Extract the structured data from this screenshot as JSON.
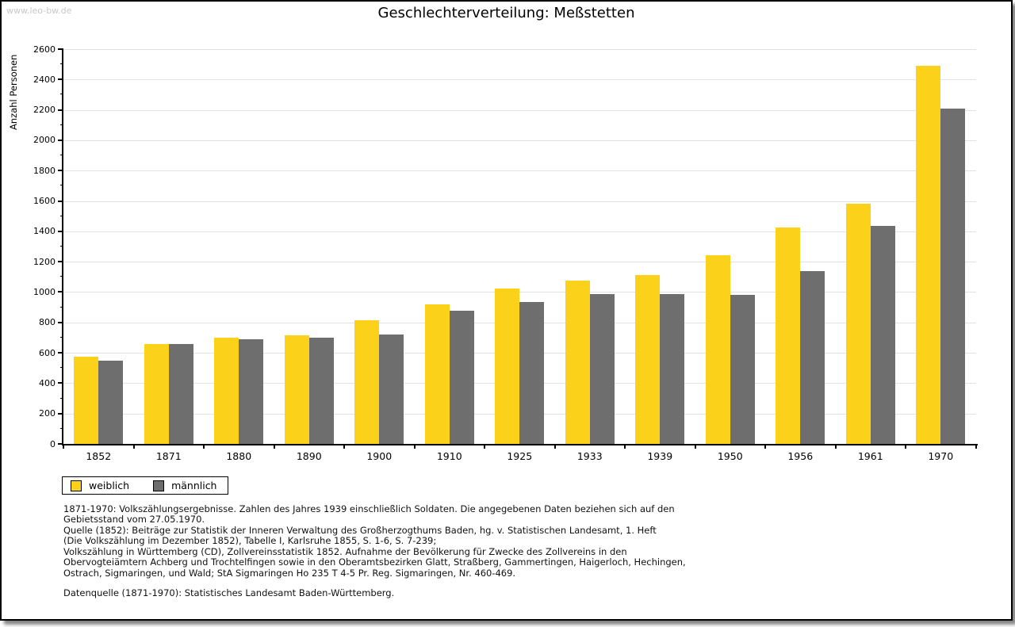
{
  "watermark": "www.leo-bw.de",
  "title": "Geschlechterverteilung: Meßstetten",
  "chart_data": {
    "type": "bar",
    "title": "Geschlechterverteilung: Meßstetten",
    "ylabel": "Anzahl Personen",
    "xlabel": "",
    "ylim": [
      0,
      2600
    ],
    "ytick_step": 200,
    "yticks": [
      0,
      200,
      400,
      600,
      800,
      1000,
      1200,
      1400,
      1600,
      1800,
      2000,
      2200,
      2400,
      2600
    ],
    "grid": "horizontal",
    "legend_position": "bottom-left",
    "categories": [
      "1852",
      "1871",
      "1880",
      "1890",
      "1900",
      "1910",
      "1925",
      "1933",
      "1939",
      "1950",
      "1956",
      "1961",
      "1970"
    ],
    "series": [
      {
        "name": "weiblich",
        "color": "#fcd11a",
        "values": [
          575,
          660,
          700,
          715,
          815,
          920,
          1025,
          1075,
          1110,
          1240,
          1425,
          1580,
          2490
        ]
      },
      {
        "name": "männlich",
        "color": "#6e6e6e",
        "values": [
          550,
          660,
          690,
          700,
          720,
          875,
          935,
          985,
          985,
          980,
          1140,
          1435,
          2210
        ]
      }
    ]
  },
  "legend": {
    "items": [
      {
        "label": "weiblich",
        "color": "#fcd11a"
      },
      {
        "label": "männlich",
        "color": "#6e6e6e"
      }
    ]
  },
  "notes": {
    "lines": [
      "1871-1970: Volkszählungsergebnisse. Zahlen des Jahres 1939 einschließlich Soldaten. Die angegebenen Daten beziehen sich auf den",
      "Gebietsstand vom 27.05.1970.",
      "Quelle (1852): Beiträge zur Statistik der Inneren Verwaltung des Großherzogthums Baden, hg. v. Statistischen Landesamt, 1. Heft",
      "(Die Volkszählung im Dezember 1852), Tabelle I, Karlsruhe 1855, S. 1-6, S. 7-239;",
      "Volkszählung in Württemberg (CD), Zollvereinsstatistik 1852. Aufnahme der Bevölkerung für Zwecke des Zollvereins in den",
      "Obervogteiämtern Achberg und Trochtelfingen sowie in den Oberamtsbezirken Glatt, Straßberg, Gammertingen, Haigerloch, Hechingen,",
      "Ostrach, Sigmaringen, und Wald; StA Sigmaringen Ho 235 T 4-5 Pr. Reg. Sigmaringen, Nr. 460-469."
    ],
    "datasource": "Datenquelle (1871-1970): Statistisches Landesamt Baden-Württemberg."
  },
  "colors": {
    "bar_female": "#fcd11a",
    "bar_male": "#6e6e6e",
    "gridline": "#e2e2e2",
    "axis": "#000000",
    "watermark_text": "#c8c8c8",
    "window_border": "#000000"
  }
}
